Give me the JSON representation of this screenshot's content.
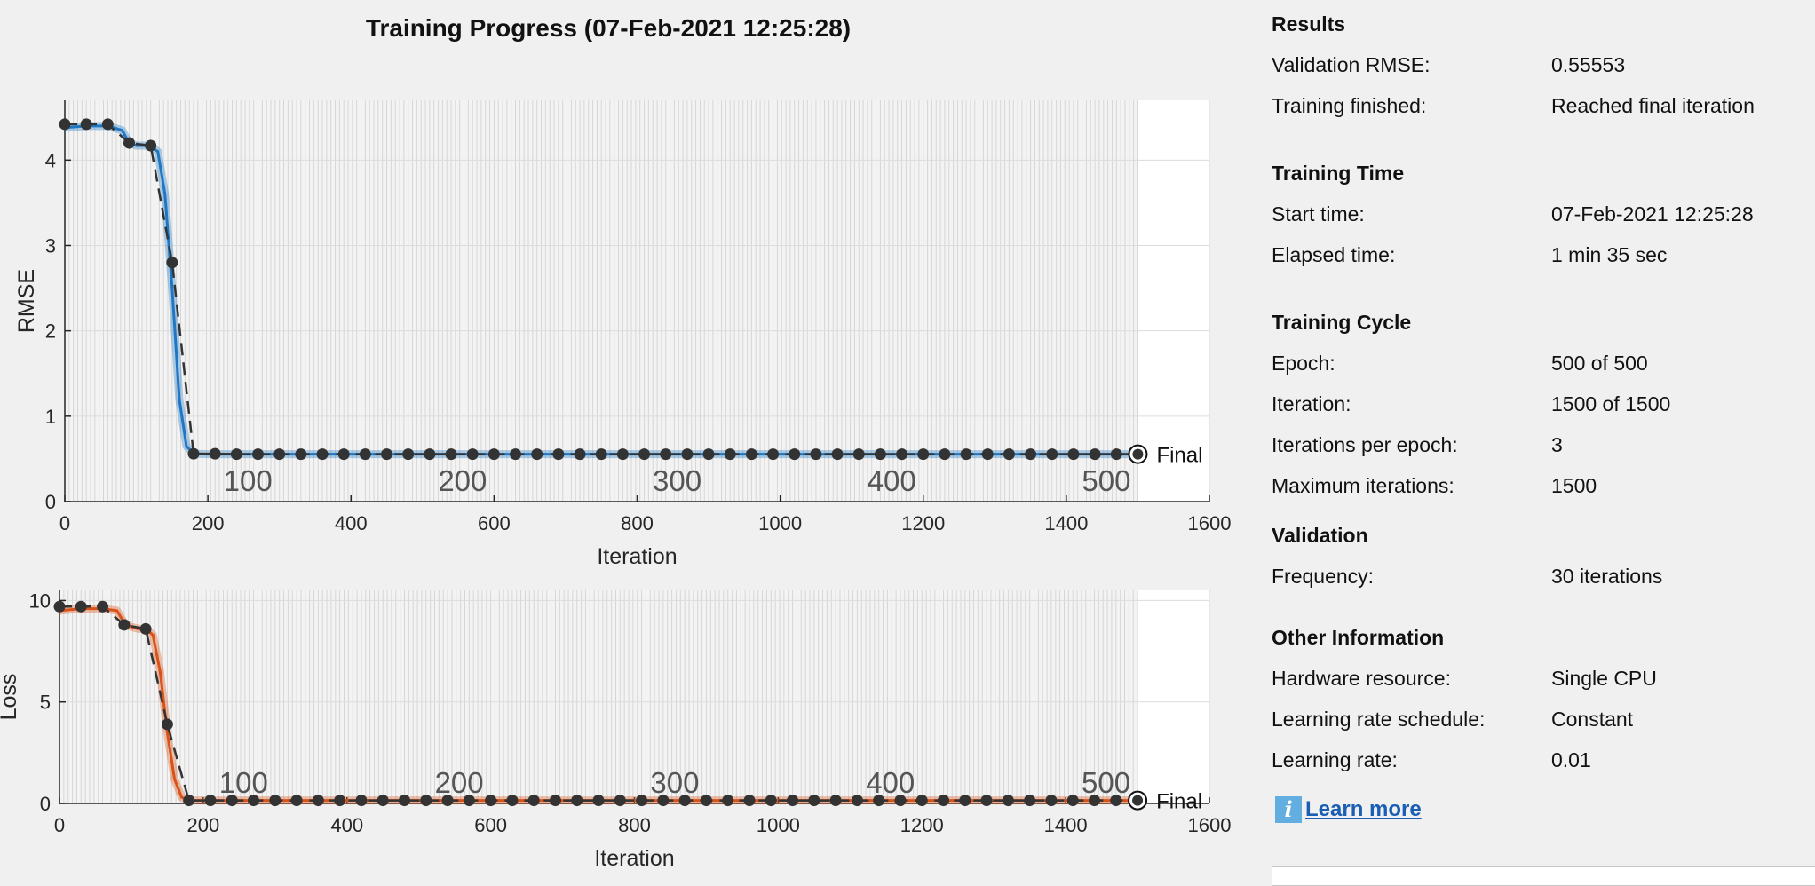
{
  "window": {
    "title": "Training Progress (07-Feb-2021 12:25:28)"
  },
  "chart_data": [
    {
      "type": "line",
      "title": "",
      "xlabel": "Iteration",
      "ylabel": "RMSE",
      "xlim": [
        0,
        1600
      ],
      "ylim": [
        0,
        4.7
      ],
      "xticks": [
        0,
        200,
        400,
        600,
        800,
        1000,
        1200,
        1400,
        1600
      ],
      "yticks": [
        0,
        1,
        2,
        3,
        4
      ],
      "grid": true,
      "training_series": {
        "color": "#1f77c4",
        "x": [
          0,
          30,
          60,
          80,
          90,
          100,
          110,
          120,
          130,
          140,
          150,
          160,
          170,
          180,
          200,
          300,
          400,
          600,
          800,
          1000,
          1200,
          1400,
          1500
        ],
        "y": [
          4.38,
          4.4,
          4.4,
          4.35,
          4.2,
          4.17,
          4.17,
          4.16,
          4.1,
          3.6,
          2.5,
          1.2,
          0.65,
          0.56,
          0.555,
          0.555,
          0.555,
          0.555,
          0.555,
          0.555,
          0.555,
          0.555,
          0.555
        ]
      },
      "validation_series": {
        "color": "#333333",
        "x": [
          0,
          30,
          60,
          90,
          120,
          150,
          180,
          210,
          240,
          270,
          300,
          330,
          360,
          390,
          420,
          450,
          480,
          510,
          540,
          570,
          600,
          630,
          660,
          690,
          720,
          750,
          780,
          810,
          840,
          870,
          900,
          930,
          960,
          990,
          1020,
          1050,
          1080,
          1110,
          1140,
          1170,
          1200,
          1230,
          1260,
          1290,
          1320,
          1350,
          1380,
          1410,
          1440,
          1470,
          1500
        ],
        "y": [
          4.42,
          4.42,
          4.42,
          4.2,
          4.17,
          2.8,
          0.56,
          0.56,
          0.555,
          0.555,
          0.555,
          0.555,
          0.555,
          0.555,
          0.555,
          0.555,
          0.555,
          0.555,
          0.555,
          0.555,
          0.555,
          0.555,
          0.555,
          0.555,
          0.555,
          0.555,
          0.555,
          0.555,
          0.555,
          0.555,
          0.555,
          0.555,
          0.555,
          0.555,
          0.555,
          0.555,
          0.555,
          0.555,
          0.555,
          0.555,
          0.555,
          0.555,
          0.555,
          0.555,
          0.555,
          0.555,
          0.555,
          0.555,
          0.555,
          0.555,
          0.555
        ]
      },
      "epoch_labels": [
        {
          "iteration": 300,
          "label": "100"
        },
        {
          "iteration": 600,
          "label": "200"
        },
        {
          "iteration": 900,
          "label": "300"
        },
        {
          "iteration": 1200,
          "label": "400"
        },
        {
          "iteration": 1500,
          "label": "500"
        }
      ],
      "final_label": "Final",
      "final_value": 0.55553
    },
    {
      "type": "line",
      "title": "",
      "xlabel": "Iteration",
      "ylabel": "Loss",
      "xlim": [
        0,
        1600
      ],
      "ylim": [
        0,
        10.5
      ],
      "xticks": [
        0,
        200,
        400,
        600,
        800,
        1000,
        1200,
        1400,
        1600
      ],
      "yticks": [
        0,
        5,
        10
      ],
      "grid": true,
      "training_series": {
        "color": "#d95319",
        "x": [
          0,
          30,
          60,
          80,
          90,
          100,
          110,
          120,
          130,
          140,
          150,
          160,
          170,
          180,
          200,
          400,
          600,
          800,
          1000,
          1200,
          1400,
          1500
        ],
        "y": [
          9.5,
          9.6,
          9.6,
          9.5,
          8.9,
          8.7,
          8.6,
          8.6,
          8.3,
          6.5,
          3.5,
          1.2,
          0.3,
          0.15,
          0.15,
          0.15,
          0.15,
          0.15,
          0.15,
          0.15,
          0.15,
          0.15
        ]
      },
      "validation_series": {
        "color": "#333333",
        "x": [
          0,
          30,
          60,
          90,
          120,
          150,
          180,
          210,
          240,
          270,
          300,
          330,
          360,
          390,
          420,
          450,
          480,
          510,
          540,
          570,
          600,
          630,
          660,
          690,
          720,
          750,
          780,
          810,
          840,
          870,
          900,
          930,
          960,
          990,
          1020,
          1050,
          1080,
          1110,
          1140,
          1170,
          1200,
          1230,
          1260,
          1290,
          1320,
          1350,
          1380,
          1410,
          1440,
          1470,
          1500
        ],
        "y": [
          9.7,
          9.7,
          9.7,
          8.8,
          8.6,
          3.9,
          0.15,
          0.15,
          0.15,
          0.15,
          0.15,
          0.15,
          0.15,
          0.15,
          0.15,
          0.15,
          0.15,
          0.15,
          0.15,
          0.15,
          0.15,
          0.15,
          0.15,
          0.15,
          0.15,
          0.15,
          0.15,
          0.15,
          0.15,
          0.15,
          0.15,
          0.15,
          0.15,
          0.15,
          0.15,
          0.15,
          0.15,
          0.15,
          0.15,
          0.15,
          0.15,
          0.15,
          0.15,
          0.15,
          0.15,
          0.15,
          0.15,
          0.15,
          0.15,
          0.15,
          0.15
        ]
      },
      "epoch_labels": [
        {
          "iteration": 300,
          "label": "100"
        },
        {
          "iteration": 600,
          "label": "200"
        },
        {
          "iteration": 900,
          "label": "300"
        },
        {
          "iteration": 1200,
          "label": "400"
        },
        {
          "iteration": 1500,
          "label": "500"
        }
      ],
      "final_label": "Final",
      "final_value": 0.15
    }
  ],
  "panel": {
    "sections": [
      {
        "title": "Results",
        "rows": [
          {
            "key": "Validation RMSE:",
            "value": "0.55553"
          },
          {
            "key": "Training finished:",
            "value": "Reached final iteration"
          }
        ]
      },
      {
        "title": "Training Time",
        "rows": [
          {
            "key": "Start time:",
            "value": "07-Feb-2021 12:25:28"
          },
          {
            "key": "Elapsed time:",
            "value": "1 min 35 sec"
          }
        ]
      },
      {
        "title": "Training Cycle",
        "rows": [
          {
            "key": "Epoch:",
            "value": "500 of 500"
          },
          {
            "key": "Iteration:",
            "value": "1500 of 1500"
          },
          {
            "key": "Iterations per epoch:",
            "value": "3"
          },
          {
            "key": "Maximum iterations:",
            "value": "1500"
          }
        ]
      },
      {
        "title": "Validation",
        "rows": [
          {
            "key": "Frequency:",
            "value": "30 iterations"
          }
        ]
      },
      {
        "title": "Other Information",
        "rows": [
          {
            "key": "Hardware resource:",
            "value": "Single CPU"
          },
          {
            "key": "Learning rate schedule:",
            "value": "Constant"
          },
          {
            "key": "Learning rate:",
            "value": "0.01"
          }
        ]
      }
    ],
    "learn_more": "Learn more",
    "info_icon_glyph": "i"
  }
}
